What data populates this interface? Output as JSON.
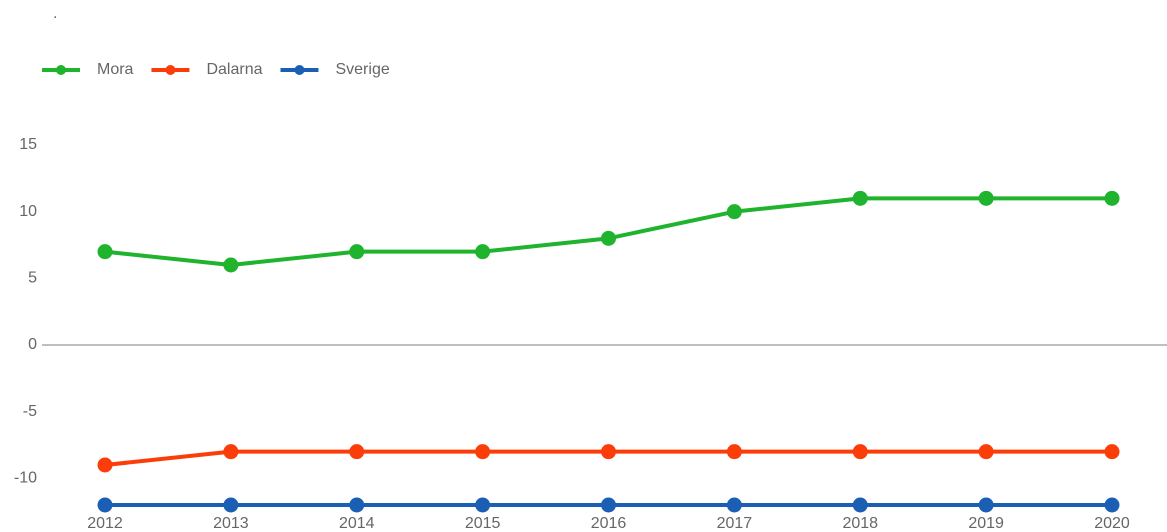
{
  "chart_data": {
    "type": "line",
    "title": ".",
    "categories": [
      "2012",
      "2013",
      "2014",
      "2015",
      "2016",
      "2017",
      "2018",
      "2019",
      "2020"
    ],
    "series": [
      {
        "name": "Mora",
        "color": "#1fb32e",
        "values": [
          7,
          6,
          7,
          7,
          8,
          10,
          11,
          11,
          11
        ]
      },
      {
        "name": "Dalarna",
        "color": "#fb3d0a",
        "values": [
          -9,
          -8,
          -8,
          -8,
          -8,
          -8,
          -8,
          -8,
          -8
        ]
      },
      {
        "name": "Sverige",
        "color": "#1b5fb5",
        "values": [
          -12,
          -12,
          -12,
          -12,
          -12,
          -12,
          -12,
          -12,
          -12
        ]
      }
    ],
    "ylim": [
      -12,
      18
    ],
    "yticks": [
      -10,
      -5,
      0,
      5,
      10,
      15
    ],
    "grid": false
  }
}
